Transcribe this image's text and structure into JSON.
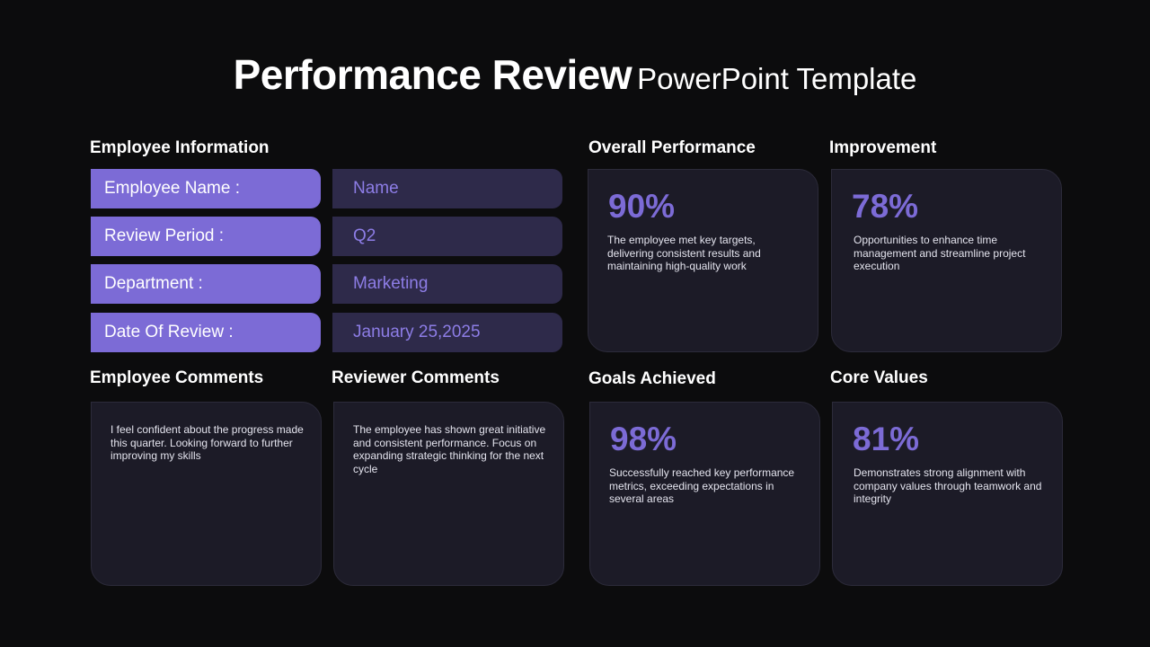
{
  "title": {
    "bold": "Performance Review",
    "light": "PowerPoint Template"
  },
  "employee_information": {
    "heading": "Employee Information",
    "rows": [
      {
        "label": "Employee Name :",
        "value": "Name"
      },
      {
        "label": "Review Period :",
        "value": "Q2"
      },
      {
        "label": "Department :",
        "value": "Marketing"
      },
      {
        "label": "Date Of Review :",
        "value": "January 25,2025"
      }
    ]
  },
  "employee_comments": {
    "heading": "Employee Comments",
    "text": "I feel confident about the progress made this quarter. Looking forward to further improving my skills"
  },
  "reviewer_comments": {
    "heading": "Reviewer Comments",
    "text": "The employee has shown great initiative and consistent performance. Focus on expanding strategic thinking for the next cycle"
  },
  "metrics": [
    {
      "heading": "Overall Performance",
      "value": "90%",
      "description": "The employee met key targets, delivering consistent results and maintaining high-quality work"
    },
    {
      "heading": "Improvement",
      "value": "78%",
      "description": "Opportunities to enhance time management and streamline project execution"
    },
    {
      "heading": "Goals Achieved",
      "value": "98%",
      "description": "Successfully reached key performance metrics, exceeding expectations in several areas"
    },
    {
      "heading": "Core Values",
      "value": "81%",
      "description": "Demonstrates strong alignment with company values through teamwork and integrity"
    }
  ],
  "colors": {
    "background": "#0c0c0d",
    "accent": "#7c6bd6",
    "label_fill": "#7c6bd6",
    "value_fill": "#2e2a4a",
    "card_fill": "#1c1b27"
  }
}
